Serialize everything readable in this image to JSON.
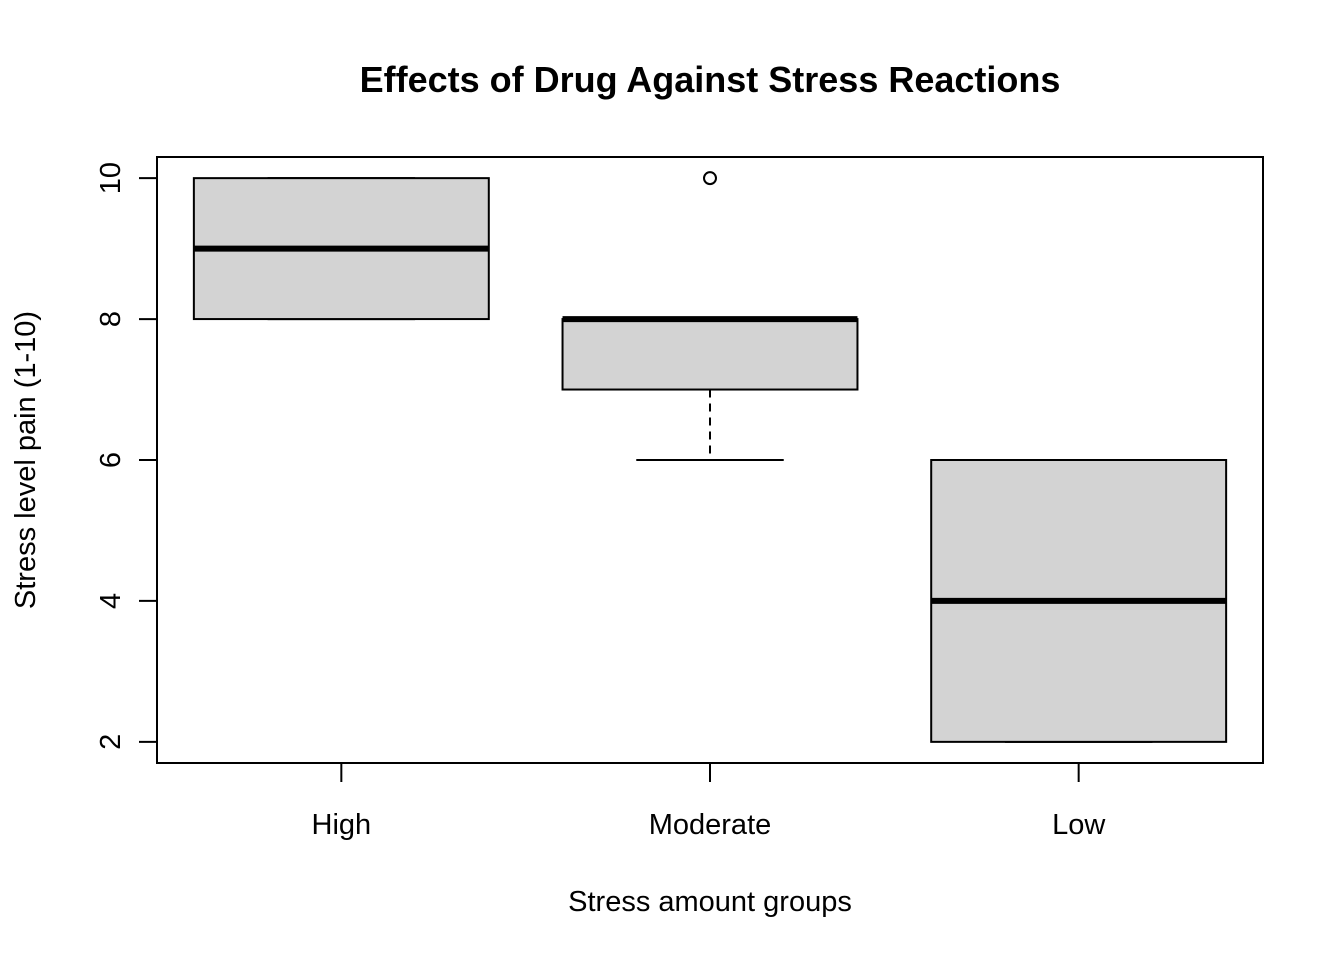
{
  "chart_data": {
    "type": "boxplot",
    "title": "Effects of Drug Against Stress Reactions",
    "xlabel": "Stress amount groups",
    "ylabel": "Stress level pain (1-10)",
    "categories": [
      "High",
      "Moderate",
      "Low"
    ],
    "yticks": [
      2,
      4,
      6,
      8,
      10
    ],
    "ylim": [
      1.7,
      10.3
    ],
    "box_fill": "#d3d3d3",
    "grid": false,
    "boxes": [
      {
        "category": "High",
        "whisker_low": 8,
        "q1": 8,
        "median": 9,
        "q3": 10,
        "whisker_high": 10,
        "outliers": []
      },
      {
        "category": "Moderate",
        "whisker_low": 6,
        "q1": 7,
        "median": 8,
        "q3": 8,
        "whisker_high": 8,
        "outliers": [
          10
        ]
      },
      {
        "category": "Low",
        "whisker_low": 2,
        "q1": 2,
        "median": 4,
        "q3": 6,
        "whisker_high": 6,
        "outliers": []
      }
    ]
  }
}
